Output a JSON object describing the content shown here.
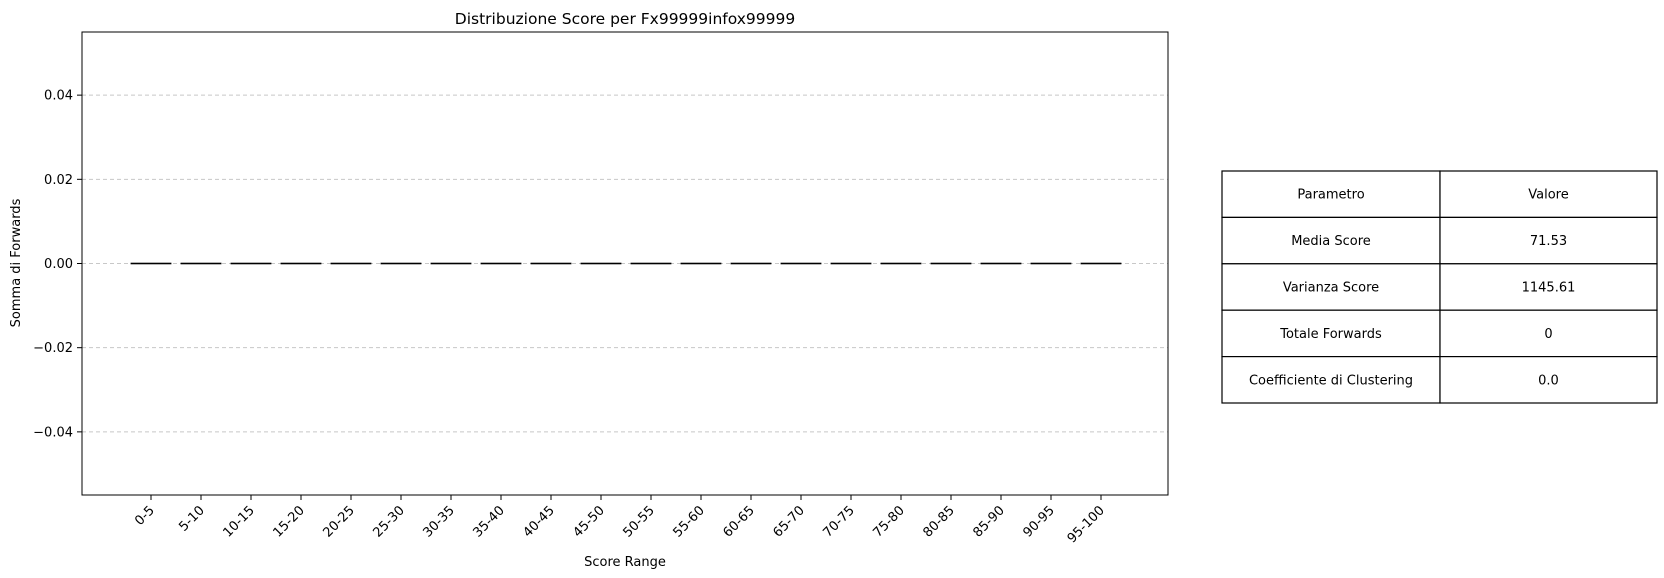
{
  "chart_data": {
    "type": "bar",
    "title": "Distribuzione Score per Fx99999infox99999",
    "xlabel": "Score Range",
    "ylabel": "Somma di Forwards",
    "categories": [
      "0-5",
      "5-10",
      "10-15",
      "15-20",
      "20-25",
      "25-30",
      "30-35",
      "35-40",
      "40-45",
      "45-50",
      "50-55",
      "55-60",
      "60-65",
      "65-70",
      "70-75",
      "75-80",
      "80-85",
      "85-90",
      "90-95",
      "95-100"
    ],
    "values": [
      0,
      0,
      0,
      0,
      0,
      0,
      0,
      0,
      0,
      0,
      0,
      0,
      0,
      0,
      0,
      0,
      0,
      0,
      0,
      0
    ],
    "ylim": [
      -0.055,
      0.055
    ],
    "yticks": [
      -0.04,
      -0.02,
      0.0,
      0.02,
      0.04
    ],
    "ytick_labels": [
      "−0.04",
      "−0.02",
      "0.00",
      "0.02",
      "0.04"
    ],
    "grid": "horizontal dashed",
    "bar_color": "#4a7db3"
  },
  "table": {
    "header": [
      "Parametro",
      "Valore"
    ],
    "rows": [
      [
        "Media Score",
        "71.53"
      ],
      [
        "Varianza Score",
        "1145.61"
      ],
      [
        "Totale Forwards",
        "0"
      ],
      [
        "Coefficiente di Clustering",
        "0.0"
      ]
    ]
  }
}
